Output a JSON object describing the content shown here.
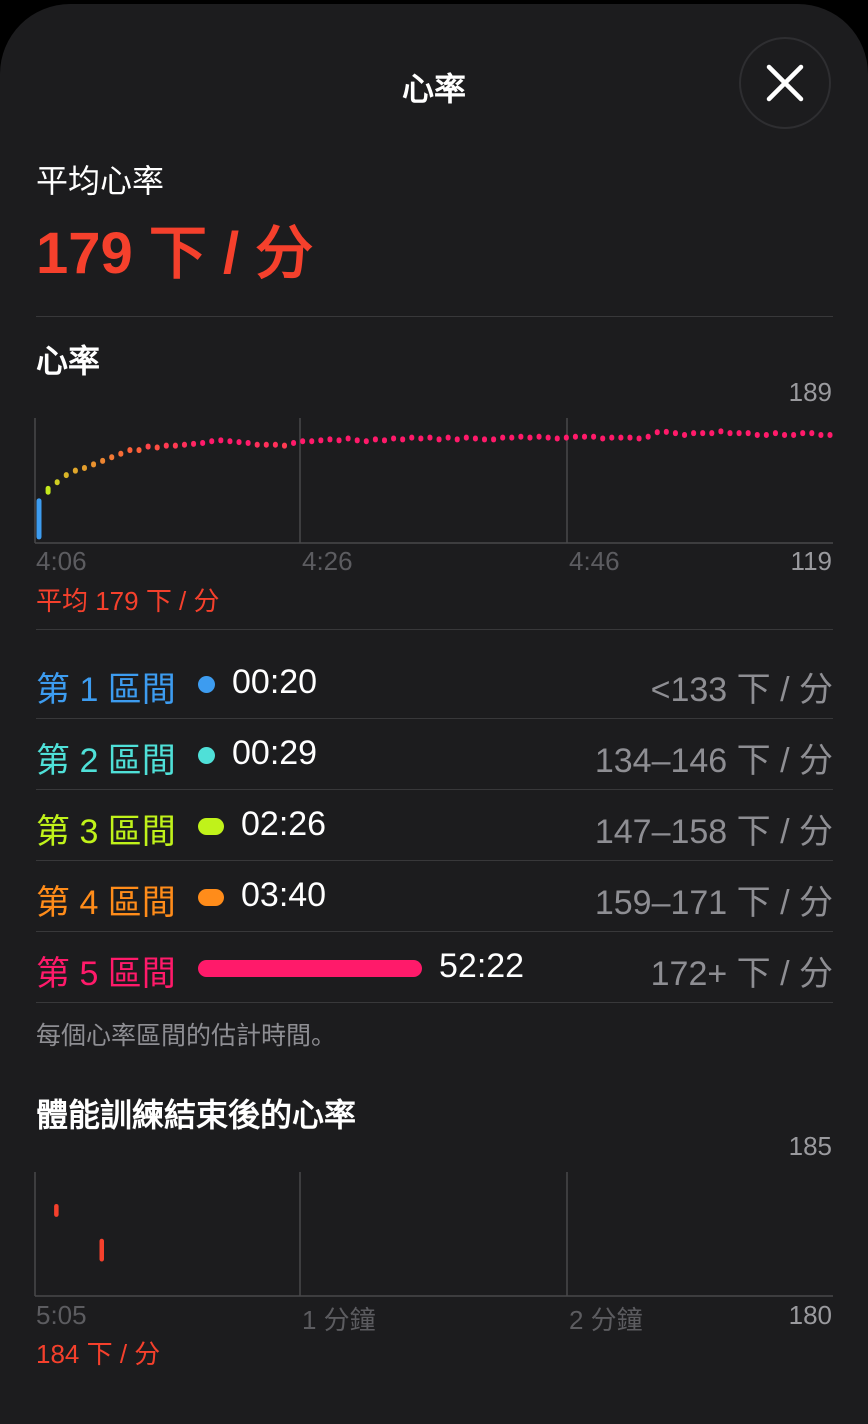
{
  "header": {
    "title": "心率",
    "close_icon": "close-icon"
  },
  "average": {
    "label": "平均心率",
    "value": "179 下 / 分"
  },
  "colors": {
    "accent": "#f5402c",
    "zone1": "#3d9cf0",
    "zone2": "#4fe0d8",
    "zone3": "#c0f21a",
    "zone4": "#ff8c1a",
    "zone5": "#ff1a6a"
  },
  "heart_rate_chart": {
    "title": "心率",
    "y_max_label": "189",
    "y_min_label": "119",
    "x_ticks": [
      "4:06",
      "4:26",
      "4:46"
    ],
    "average_label": "平均 179 下 / 分"
  },
  "zones": {
    "items": [
      {
        "name": "第 1 區間",
        "time": "00:20",
        "seconds": 20,
        "range": "<133 下 / 分",
        "color": "#3d9cf0"
      },
      {
        "name": "第 2 區間",
        "time": "00:29",
        "seconds": 29,
        "range": "134–146 下 / 分",
        "color": "#4fe0d8"
      },
      {
        "name": "第 3 區間",
        "time": "02:26",
        "seconds": 146,
        "range": "147–158 下 / 分",
        "color": "#c0f21a"
      },
      {
        "name": "第 4 區間",
        "time": "03:40",
        "seconds": 220,
        "range": "159–171 下 / 分",
        "color": "#ff8c1a"
      },
      {
        "name": "第 5 區間",
        "time": "52:22",
        "seconds": 3142,
        "range": "172+ 下 / 分",
        "color": "#ff1a6a"
      }
    ],
    "note": "每個心率區間的估計時間。"
  },
  "recovery_chart": {
    "title": "體能訓練結束後的心率",
    "y_max_label": "185",
    "y_min_label": "180",
    "x_ticks": [
      "5:05",
      "1 分鐘",
      "2 分鐘"
    ],
    "value_label": "184 下 / 分"
  },
  "chart_data": [
    {
      "type": "range-dot",
      "title": "心率",
      "xlabel": "",
      "ylabel": "",
      "x_range": [
        "4:06",
        "5:06"
      ],
      "x_ticks": [
        "4:06",
        "4:26",
        "4:46"
      ],
      "ylim": [
        119,
        189
      ],
      "grid": true,
      "series": [
        {
          "values": [
            [
              121,
              144
            ],
            [
              146,
              151
            ],
            [
              152,
              154
            ],
            [
              156,
              158
            ],
            [
              158,
              161
            ],
            [
              160,
              162
            ],
            [
              162,
              164
            ],
            [
              164,
              166
            ],
            [
              166,
              168
            ],
            [
              168,
              170
            ],
            [
              170,
              172
            ],
            [
              170,
              172
            ],
            [
              172,
              174
            ],
            [
              172,
              173
            ],
            [
              173,
              174
            ],
            [
              173,
              174
            ],
            [
              173,
              175
            ],
            [
              174,
              175
            ],
            [
              174,
              176
            ],
            [
              175,
              177
            ],
            [
              176,
              177
            ],
            [
              175,
              177
            ],
            [
              175,
              176
            ],
            [
              174,
              176
            ],
            [
              173,
              175
            ],
            [
              173,
              175
            ],
            [
              173,
              175
            ],
            [
              173,
              174
            ],
            [
              174,
              176
            ],
            [
              175,
              177
            ],
            [
              175,
              177
            ],
            [
              176,
              177
            ],
            [
              176,
              178
            ],
            [
              176,
              177
            ],
            [
              177,
              178
            ],
            [
              176,
              177
            ],
            [
              175,
              177
            ],
            [
              176,
              178
            ],
            [
              176,
              177
            ],
            [
              177,
              178
            ],
            [
              176,
              178
            ],
            [
              177,
              179
            ],
            [
              177,
              178
            ],
            [
              177,
              179
            ],
            [
              176,
              178
            ],
            [
              177,
              179
            ],
            [
              176,
              178
            ],
            [
              177,
              179
            ],
            [
              177,
              178
            ],
            [
              176,
              178
            ],
            [
              176,
              178
            ],
            [
              177,
              179
            ],
            [
              177,
              179
            ],
            [
              178,
              179
            ],
            [
              177,
              179
            ],
            [
              178,
              179
            ],
            [
              177,
              179
            ],
            [
              177,
              178
            ],
            [
              177,
              179
            ],
            [
              178,
              179
            ],
            [
              178,
              179
            ],
            [
              178,
              179
            ],
            [
              177,
              178
            ],
            [
              177,
              179
            ],
            [
              177,
              179
            ],
            [
              177,
              179
            ],
            [
              177,
              178
            ],
            [
              178,
              179
            ],
            [
              180,
              182
            ],
            [
              181,
              181.5
            ],
            [
              180,
              181
            ],
            [
              178,
              181
            ],
            [
              180,
              181
            ],
            [
              180,
              181
            ],
            [
              180,
              181
            ],
            [
              181,
              182
            ],
            [
              180,
              181
            ],
            [
              180,
              181
            ],
            [
              180,
              181
            ],
            [
              179,
              180
            ],
            [
              179,
              180
            ],
            [
              180,
              181
            ],
            [
              179,
              180
            ],
            [
              179,
              180
            ],
            [
              180,
              181
            ],
            [
              180,
              181
            ],
            [
              179,
              180
            ],
            [
              179,
              180
            ]
          ]
        }
      ]
    },
    {
      "type": "range-dot",
      "title": "體能訓練結束後的心率",
      "x_unit": "minutes after 5:05",
      "x_range": [
        0,
        3
      ],
      "x_ticks": [
        "5:05",
        "1 分鐘",
        "2 分鐘"
      ],
      "ylim": [
        180,
        185
      ],
      "grid": true,
      "series": [
        {
          "points": [
            {
              "x": 0.08,
              "y": [
                183.2,
                183.7
              ]
            },
            {
              "x": 0.25,
              "y": [
                181.4,
                182.3
              ]
            }
          ]
        }
      ]
    }
  ]
}
